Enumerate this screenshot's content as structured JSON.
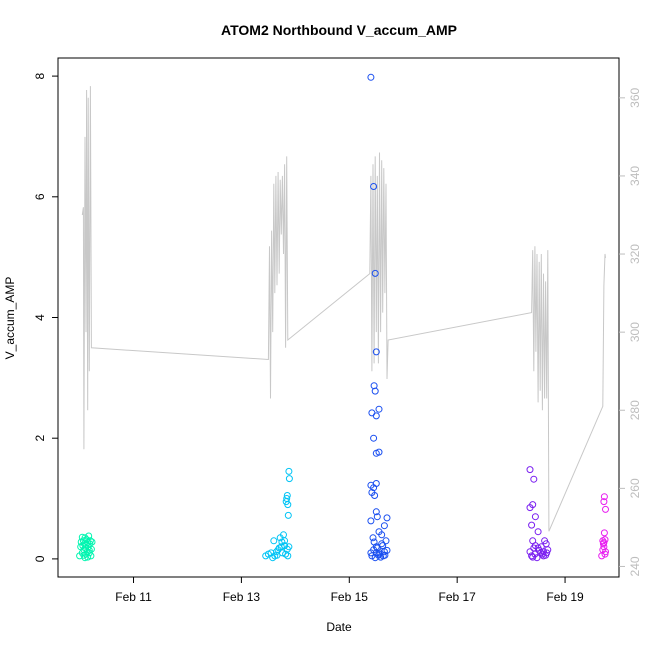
{
  "chart_data": {
    "type": "scatter",
    "title": "ATOM2 Northbound V_accum_AMP",
    "xlabel": "Date",
    "ylabel": "V_accum_AMP",
    "x_tick_labels": [
      "Feb 11",
      "Feb 13",
      "Feb 15",
      "Feb 17",
      "Feb 19"
    ],
    "x_tick_values": [
      11,
      13,
      15,
      17,
      19
    ],
    "xlim": [
      9.6,
      20.0
    ],
    "y_left_ticks": [
      0,
      2,
      4,
      6,
      8
    ],
    "ylim": [
      -0.3,
      8.3
    ],
    "y_right_ticks": [
      240,
      260,
      280,
      300,
      320,
      340,
      360
    ],
    "y2lim": [
      237.3,
      370.2
    ],
    "right_axis_color": "#bdbdbd",
    "grid": false,
    "series": [
      {
        "color": "#00f5b0",
        "points": [
          [
            10.0,
            0.05
          ],
          [
            10.02,
            0.2
          ],
          [
            10.03,
            0.28
          ],
          [
            10.05,
            0.1
          ],
          [
            10.06,
            0.22
          ],
          [
            10.07,
            0.3
          ],
          [
            10.08,
            0.15
          ],
          [
            10.09,
            0.25
          ],
          [
            10.1,
            0.35
          ],
          [
            10.11,
            0.18
          ],
          [
            10.12,
            0.08
          ],
          [
            10.13,
            0.32
          ],
          [
            10.14,
            0.12
          ],
          [
            10.15,
            0.27
          ],
          [
            10.16,
            0.2
          ],
          [
            10.17,
            0.38
          ],
          [
            10.18,
            0.1
          ],
          [
            10.19,
            0.25
          ],
          [
            10.2,
            0.3
          ],
          [
            10.21,
            0.05
          ],
          [
            10.22,
            0.16
          ],
          [
            10.23,
            0.28
          ],
          [
            10.1,
            0.02
          ],
          [
            10.15,
            0.03
          ],
          [
            10.05,
            0.36
          ],
          [
            10.12,
            0.24
          ],
          [
            10.18,
            0.14
          ],
          [
            10.08,
            0.06
          ]
        ]
      },
      {
        "color": "#00c4f5",
        "points": [
          [
            13.45,
            0.05
          ],
          [
            13.5,
            0.08
          ],
          [
            13.55,
            0.1
          ],
          [
            13.6,
            0.3
          ],
          [
            13.62,
            0.05
          ],
          [
            13.65,
            0.12
          ],
          [
            13.68,
            0.15
          ],
          [
            13.7,
            0.18
          ],
          [
            13.72,
            0.35
          ],
          [
            13.74,
            0.2
          ],
          [
            13.75,
            0.28
          ],
          [
            13.76,
            0.1
          ],
          [
            13.78,
            0.4
          ],
          [
            13.8,
            0.3
          ],
          [
            13.82,
            0.08
          ],
          [
            13.83,
            0.95
          ],
          [
            13.84,
            1.0
          ],
          [
            13.85,
            1.05
          ],
          [
            13.86,
            0.9
          ],
          [
            13.87,
            0.72
          ],
          [
            13.88,
            1.45
          ],
          [
            13.89,
            1.33
          ],
          [
            13.8,
            0.22
          ],
          [
            13.85,
            0.16
          ],
          [
            13.58,
            0.02
          ],
          [
            13.66,
            0.06
          ],
          [
            13.88,
            0.2
          ],
          [
            13.86,
            0.05
          ]
        ]
      },
      {
        "color": "#1a4ff0",
        "points": [
          [
            15.4,
            7.98
          ],
          [
            15.45,
            6.17
          ],
          [
            15.48,
            4.73
          ],
          [
            15.5,
            3.43
          ],
          [
            15.46,
            2.87
          ],
          [
            15.48,
            2.78
          ],
          [
            15.55,
            2.48
          ],
          [
            15.42,
            2.42
          ],
          [
            15.5,
            2.37
          ],
          [
            15.45,
            2.0
          ],
          [
            15.5,
            1.75
          ],
          [
            15.55,
            1.77
          ],
          [
            15.4,
            1.22
          ],
          [
            15.45,
            1.18
          ],
          [
            15.5,
            1.25
          ],
          [
            15.42,
            1.1
          ],
          [
            15.47,
            1.05
          ],
          [
            15.4,
            0.63
          ],
          [
            15.55,
            0.45
          ],
          [
            15.6,
            0.4
          ],
          [
            15.5,
            0.78
          ],
          [
            15.52,
            0.7
          ],
          [
            15.65,
            0.55
          ],
          [
            15.7,
            0.68
          ],
          [
            15.68,
            0.3
          ],
          [
            15.5,
            0.2
          ],
          [
            15.45,
            0.15
          ],
          [
            15.6,
            0.25
          ],
          [
            15.55,
            0.08
          ],
          [
            15.65,
            0.12
          ],
          [
            15.4,
            0.1
          ],
          [
            15.42,
            0.05
          ],
          [
            15.48,
            0.02
          ],
          [
            15.52,
            0.18
          ],
          [
            15.58,
            0.03
          ],
          [
            15.62,
            0.22
          ],
          [
            15.66,
            0.06
          ],
          [
            15.7,
            0.14
          ],
          [
            15.44,
            0.35
          ],
          [
            15.57,
            0.1
          ],
          [
            15.63,
            0.05
          ],
          [
            15.5,
            0.1
          ],
          [
            15.46,
            0.28
          ],
          [
            15.54,
            0.06
          ]
        ]
      },
      {
        "color": "#7a1ff0",
        "points": [
          [
            18.35,
            1.48
          ],
          [
            18.42,
            1.32
          ],
          [
            18.4,
            0.9
          ],
          [
            18.35,
            0.85
          ],
          [
            18.45,
            0.7
          ],
          [
            18.38,
            0.56
          ],
          [
            18.5,
            0.45
          ],
          [
            18.4,
            0.3
          ],
          [
            18.45,
            0.22
          ],
          [
            18.5,
            0.18
          ],
          [
            18.55,
            0.1
          ],
          [
            18.6,
            0.05
          ],
          [
            18.62,
            0.3
          ],
          [
            18.65,
            0.25
          ],
          [
            18.68,
            0.15
          ],
          [
            18.58,
            0.08
          ],
          [
            18.35,
            0.12
          ],
          [
            18.38,
            0.05
          ],
          [
            18.42,
            0.18
          ],
          [
            18.48,
            0.02
          ],
          [
            18.52,
            0.14
          ],
          [
            18.56,
            0.2
          ],
          [
            18.64,
            0.06
          ],
          [
            18.66,
            0.1
          ],
          [
            18.4,
            0.03
          ],
          [
            18.6,
            0.12
          ],
          [
            18.44,
            0.08
          ]
        ]
      },
      {
        "color": "#e81ef0",
        "points": [
          [
            19.68,
            0.05
          ],
          [
            19.7,
            0.15
          ],
          [
            19.72,
            0.27
          ],
          [
            19.74,
            0.32
          ],
          [
            19.73,
            1.03
          ],
          [
            19.72,
            0.95
          ],
          [
            19.75,
            0.82
          ],
          [
            19.73,
            0.43
          ],
          [
            19.71,
            0.25
          ],
          [
            19.74,
            0.08
          ],
          [
            19.7,
            0.3
          ],
          [
            19.75,
            0.12
          ],
          [
            19.72,
            0.2
          ]
        ]
      }
    ],
    "line_series": {
      "axis": "right",
      "color": "#c8c8c8",
      "points": [
        [
          10.05,
          330
        ],
        [
          10.07,
          332
        ],
        [
          10.08,
          270
        ],
        [
          10.1,
          350
        ],
        [
          10.12,
          300
        ],
        [
          10.13,
          362
        ],
        [
          10.15,
          280
        ],
        [
          10.16,
          360
        ],
        [
          10.18,
          290
        ],
        [
          10.2,
          363
        ],
        [
          10.22,
          296
        ],
        [
          13.5,
          293
        ],
        [
          13.52,
          322
        ],
        [
          13.54,
          283
        ],
        [
          13.56,
          326
        ],
        [
          13.58,
          300
        ],
        [
          13.6,
          338
        ],
        [
          13.62,
          310
        ],
        [
          13.64,
          340
        ],
        [
          13.66,
          312
        ],
        [
          13.68,
          341
        ],
        [
          13.7,
          315
        ],
        [
          13.72,
          339
        ],
        [
          13.74,
          325
        ],
        [
          13.76,
          340
        ],
        [
          13.78,
          320
        ],
        [
          13.8,
          343
        ],
        [
          13.82,
          296
        ],
        [
          13.84,
          345
        ],
        [
          13.86,
          298
        ],
        [
          15.38,
          315
        ],
        [
          15.4,
          340
        ],
        [
          15.42,
          290
        ],
        [
          15.44,
          343
        ],
        [
          15.46,
          292
        ],
        [
          15.48,
          345
        ],
        [
          15.5,
          300
        ],
        [
          15.52,
          340
        ],
        [
          15.54,
          292
        ],
        [
          15.56,
          346
        ],
        [
          15.58,
          300
        ],
        [
          15.6,
          344
        ],
        [
          15.62,
          305
        ],
        [
          15.64,
          342
        ],
        [
          15.66,
          310
        ],
        [
          15.68,
          338
        ],
        [
          15.7,
          288
        ],
        [
          15.72,
          298
        ],
        [
          18.38,
          305
        ],
        [
          18.4,
          321
        ],
        [
          18.42,
          290
        ],
        [
          18.44,
          322
        ],
        [
          18.46,
          295
        ],
        [
          18.48,
          320
        ],
        [
          18.5,
          282
        ],
        [
          18.52,
          318
        ],
        [
          18.54,
          285
        ],
        [
          18.56,
          320
        ],
        [
          18.58,
          280
        ],
        [
          18.6,
          315
        ],
        [
          18.62,
          283
        ],
        [
          18.64,
          313
        ],
        [
          18.66,
          283
        ],
        [
          18.68,
          321
        ],
        [
          18.7,
          249
        ],
        [
          19.7,
          281
        ],
        [
          19.72,
          312
        ],
        [
          19.74,
          320
        ],
        [
          19.75,
          319
        ]
      ]
    }
  }
}
